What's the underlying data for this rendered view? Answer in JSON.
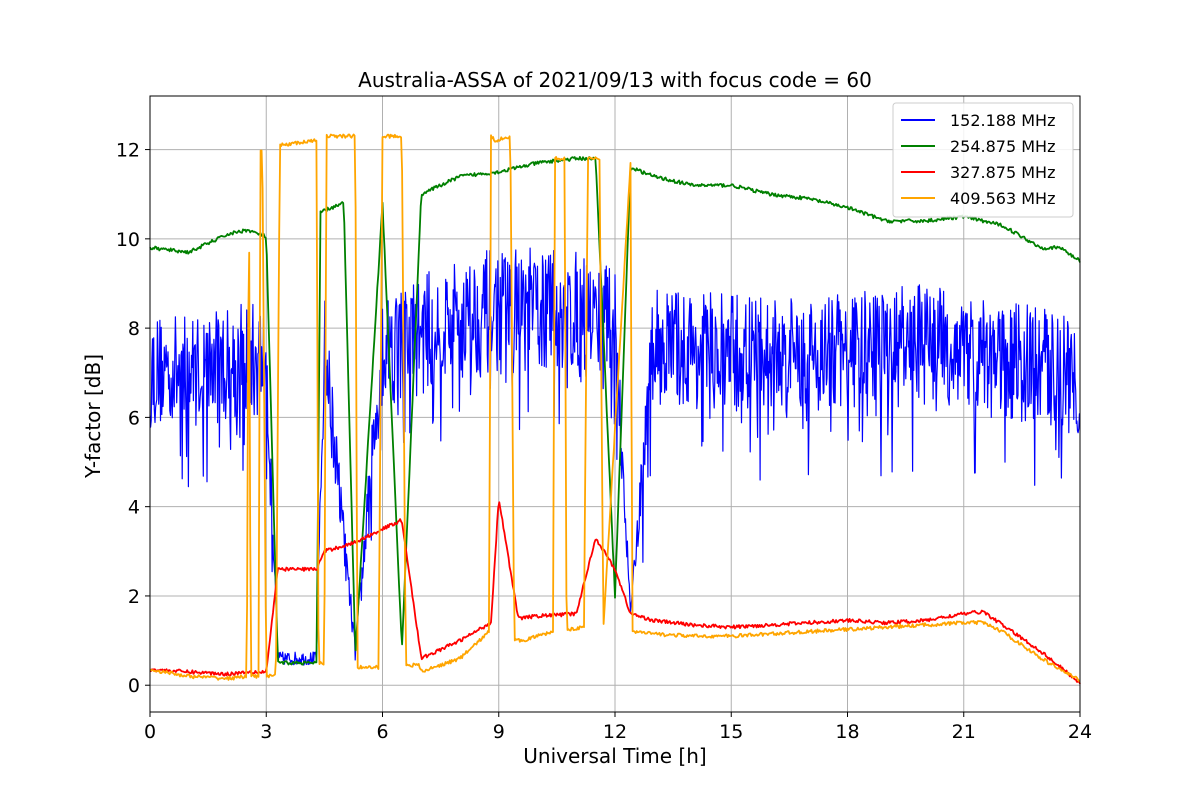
{
  "chart_data": {
    "type": "line",
    "title": "Australia-ASSA of 2021/09/13 with focus code = 60",
    "xlabel": "Universal Time [h]",
    "ylabel": "Y-factor [dB]",
    "xlim": [
      0,
      24
    ],
    "ylim": [
      -0.6,
      13.2
    ],
    "xticks": [
      0,
      3,
      6,
      9,
      12,
      15,
      18,
      21,
      24
    ],
    "yticks": [
      0,
      2,
      4,
      6,
      8,
      10,
      12
    ],
    "grid": true,
    "legend_position": "top-right",
    "series": [
      {
        "name": "152.188 MHz",
        "color": "#0000ff",
        "style": "noisy",
        "x": [
          0.0,
          1.0,
          2.0,
          2.5,
          3.0,
          3.3,
          4.3,
          4.5,
          5.3,
          6.0,
          6.5,
          7.0,
          8.0,
          9.0,
          10.0,
          11.0,
          12.0,
          12.4,
          13.0,
          14.0,
          15.0,
          16.0,
          17.0,
          18.0,
          19.0,
          20.0,
          21.0,
          22.0,
          23.0,
          24.0
        ],
        "low": [
          5.8,
          5.8,
          5.9,
          5.9,
          5.9,
          0.45,
          0.45,
          6.5,
          0.5,
          6.3,
          6.3,
          6.5,
          6.8,
          7.0,
          7.0,
          7.0,
          6.8,
          1.6,
          6.3,
          6.2,
          6.0,
          6.0,
          6.1,
          6.1,
          6.2,
          6.3,
          6.1,
          6.0,
          5.8,
          5.6
        ],
        "high": [
          8.3,
          8.3,
          8.5,
          8.6,
          8.6,
          0.75,
          0.75,
          8.8,
          0.9,
          9.0,
          9.0,
          9.2,
          9.6,
          9.8,
          9.8,
          9.7,
          9.4,
          1.7,
          9.0,
          8.8,
          8.8,
          8.7,
          8.7,
          8.8,
          8.9,
          9.0,
          8.8,
          8.6,
          8.5,
          8.3
        ]
      },
      {
        "name": "254.875 MHz",
        "color": "#008000",
        "style": "line",
        "x": [
          0.0,
          0.5,
          1.0,
          1.5,
          2.0,
          2.5,
          3.0,
          3.3,
          4.3,
          4.4,
          5.0,
          5.3,
          6.0,
          6.5,
          7.0,
          8.0,
          9.0,
          10.0,
          11.0,
          11.5,
          12.0,
          12.4,
          13.0,
          14.0,
          15.0,
          16.0,
          17.0,
          18.0,
          19.0,
          20.0,
          21.0,
          22.0,
          23.0,
          23.5,
          24.0
        ],
        "y": [
          9.8,
          9.75,
          9.7,
          9.9,
          10.1,
          10.2,
          10.05,
          0.5,
          0.5,
          10.6,
          10.8,
          0.7,
          10.8,
          0.8,
          11.0,
          11.4,
          11.5,
          11.7,
          11.8,
          11.8,
          2.0,
          11.6,
          11.4,
          11.2,
          11.2,
          11.0,
          10.9,
          10.7,
          10.4,
          10.4,
          10.5,
          10.3,
          9.8,
          9.8,
          9.5
        ]
      },
      {
        "name": "327.875 MHz",
        "color": "#ff0000",
        "style": "line",
        "x": [
          0.0,
          1.0,
          2.0,
          2.5,
          3.0,
          3.3,
          4.3,
          4.5,
          5.3,
          6.0,
          6.5,
          7.0,
          8.0,
          8.8,
          9.0,
          9.5,
          10.0,
          11.0,
          11.5,
          12.0,
          12.4,
          13.0,
          14.0,
          15.0,
          16.0,
          17.0,
          18.0,
          19.0,
          20.0,
          21.0,
          21.5,
          22.0,
          23.0,
          24.0
        ],
        "y": [
          0.35,
          0.3,
          0.25,
          0.3,
          0.3,
          2.6,
          2.6,
          3.0,
          3.2,
          3.5,
          3.7,
          0.6,
          1.0,
          1.4,
          4.2,
          1.5,
          1.55,
          1.6,
          3.3,
          2.6,
          1.6,
          1.45,
          1.35,
          1.3,
          1.35,
          1.4,
          1.45,
          1.4,
          1.45,
          1.6,
          1.65,
          1.35,
          0.75,
          0.05
        ]
      },
      {
        "name": "409.563 MHz",
        "color": "#ffa500",
        "style": "line",
        "x": [
          0.0,
          1.0,
          2.0,
          2.5,
          2.55,
          2.6,
          2.8,
          2.85,
          2.9,
          3.0,
          3.25,
          3.35,
          4.3,
          4.35,
          4.5,
          4.55,
          5.3,
          5.35,
          5.9,
          6.0,
          6.5,
          6.6,
          6.95,
          7.0,
          8.0,
          8.75,
          8.8,
          8.9,
          9.3,
          9.4,
          9.6,
          10.0,
          10.4,
          10.45,
          10.7,
          10.75,
          11.2,
          11.3,
          11.6,
          11.7,
          12.4,
          12.45,
          13.0,
          14.0,
          15.0,
          16.0,
          17.0,
          18.0,
          19.0,
          20.0,
          21.0,
          21.5,
          22.0,
          22.5,
          23.0,
          23.5,
          24.0
        ],
        "y": [
          0.35,
          0.2,
          0.15,
          0.2,
          12.1,
          0.2,
          0.2,
          12.0,
          11.9,
          0.2,
          0.2,
          12.1,
          12.2,
          0.5,
          0.5,
          12.3,
          12.3,
          0.4,
          0.4,
          12.3,
          12.3,
          0.45,
          0.45,
          0.3,
          0.6,
          1.2,
          12.3,
          12.2,
          12.3,
          1.0,
          1.0,
          1.1,
          1.2,
          11.8,
          11.8,
          1.25,
          1.3,
          11.8,
          11.8,
          1.3,
          11.7,
          1.2,
          1.15,
          1.1,
          1.1,
          1.15,
          1.2,
          1.25,
          1.3,
          1.35,
          1.4,
          1.4,
          1.2,
          0.9,
          0.6,
          0.35,
          0.1
        ]
      }
    ]
  }
}
